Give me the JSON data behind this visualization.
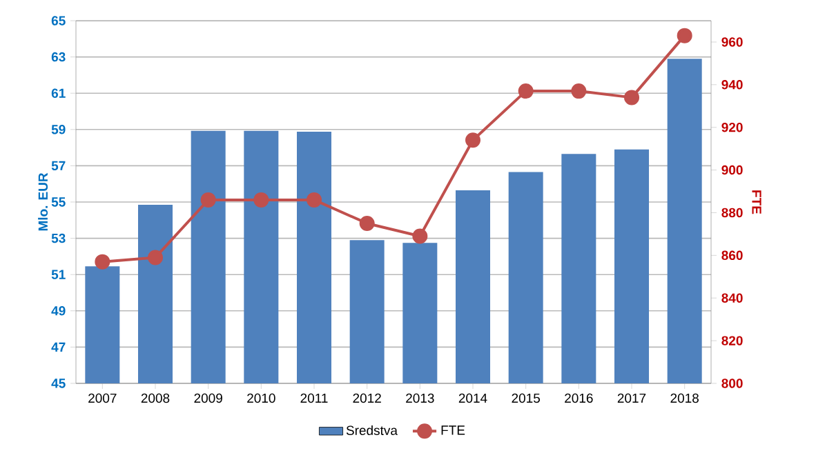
{
  "chart_data": {
    "type": "bar",
    "categories": [
      "2007",
      "2008",
      "2009",
      "2010",
      "2011",
      "2012",
      "2013",
      "2014",
      "2015",
      "2016",
      "2017",
      "2018"
    ],
    "series": [
      {
        "name": "Sredstva",
        "color": "#4f81bd",
        "values": [
          51.45,
          54.85,
          58.93,
          58.93,
          58.88,
          52.9,
          52.75,
          55.65,
          56.65,
          57.65,
          57.9,
          62.9
        ]
      },
      {
        "name": "FTE",
        "type": "line",
        "axis": "y2",
        "color": "#c0504d",
        "marker": "circle",
        "values": [
          857,
          859,
          886,
          886,
          886,
          875,
          869,
          914,
          937,
          937,
          934,
          963
        ]
      }
    ],
    "ylabel": "Mlo. EUR",
    "y2label": "FTE",
    "ylim": [
      45,
      65
    ],
    "yticks": [
      45,
      47,
      49,
      51,
      53,
      55,
      57,
      59,
      61,
      63,
      65
    ],
    "y2lim": [
      800,
      970
    ],
    "y2ticks": [
      800,
      820,
      840,
      860,
      880,
      900,
      920,
      940,
      960
    ],
    "grid": "y",
    "legend": "bottom"
  }
}
